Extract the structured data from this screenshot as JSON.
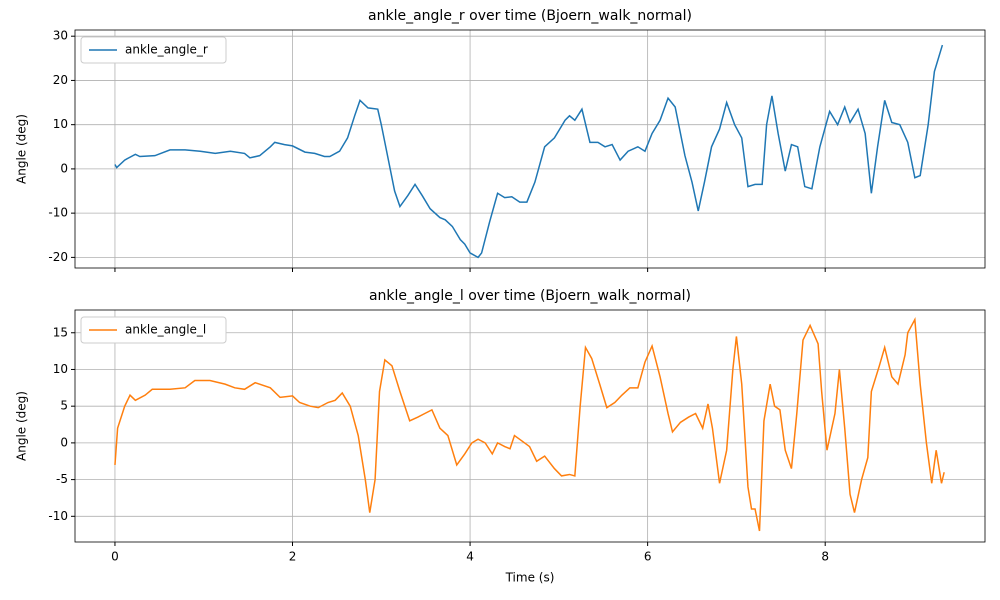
{
  "chart_data": [
    {
      "type": "line",
      "title": "ankle_angle_r over time (Bjoern_walk_normal)",
      "ylabel": "Angle (deg)",
      "x": [
        0,
        0.02,
        0.11,
        0.23,
        0.28,
        0.45,
        0.62,
        0.79,
        0.96,
        1.13,
        1.3,
        1.46,
        1.52,
        1.63,
        1.75,
        1.8,
        1.91,
        2.0,
        2.14,
        2.25,
        2.36,
        2.42,
        2.53,
        2.62,
        2.7,
        2.76,
        2.85,
        2.96,
        3.0,
        3.1,
        3.15,
        3.21,
        3.3,
        3.38,
        3.46,
        3.55,
        3.66,
        3.72,
        3.8,
        3.89,
        3.94,
        4.0,
        4.09,
        4.13,
        4.22,
        4.31,
        4.39,
        4.47,
        4.56,
        4.64,
        4.73,
        4.84,
        4.95,
        5.07,
        5.12,
        5.18,
        5.26,
        5.35,
        5.44,
        5.52,
        5.6,
        5.69,
        5.78,
        5.89,
        5.97,
        6.05,
        6.14,
        6.23,
        6.31,
        6.42,
        6.5,
        6.57,
        6.64,
        6.72,
        6.81,
        6.89,
        6.98,
        7.06,
        7.13,
        7.21,
        7.29,
        7.34,
        7.4,
        7.47,
        7.55,
        7.62,
        7.69,
        7.77,
        7.85,
        7.94,
        8.05,
        8.14,
        8.22,
        8.28,
        8.37,
        8.45,
        8.52,
        8.59,
        8.67,
        8.75,
        8.84,
        8.93,
        9.01,
        9.07,
        9.16,
        9.23,
        9.32
      ],
      "series": [
        {
          "name": "ankle_angle_r",
          "color": "#1f77b4",
          "values": [
            1,
            0.3,
            2,
            3.3,
            2.8,
            3,
            4.3,
            4.3,
            4,
            3.5,
            4,
            3.5,
            2.5,
            3,
            5,
            6,
            5.5,
            5.2,
            3.8,
            3.5,
            2.8,
            2.8,
            4,
            7,
            12,
            15.5,
            13.8,
            13.5,
            10,
            0,
            -5,
            -8.5,
            -6,
            -3.5,
            -6,
            -9,
            -11,
            -11.5,
            -13,
            -16,
            -17,
            -19,
            -20,
            -19,
            -12,
            -5.5,
            -6.5,
            -6.3,
            -7.5,
            -7.5,
            -3,
            5,
            7,
            11,
            12,
            11,
            13.5,
            6,
            6,
            5,
            5.5,
            2,
            4,
            5,
            4,
            8,
            11,
            16,
            14,
            3,
            -3,
            -9.5,
            -3,
            5,
            9,
            15,
            10,
            7,
            -4,
            -3.5,
            -3.5,
            10,
            16.5,
            8,
            -0.5,
            5.5,
            5,
            -4,
            -4.5,
            5,
            13,
            10,
            14,
            10.5,
            13.5,
            8,
            -5.5,
            5,
            15.5,
            10.5,
            10,
            6,
            -2,
            -1.5,
            10,
            22,
            28
          ]
        }
      ],
      "xlim": [
        -0.45,
        9.8
      ],
      "xticks": [
        0,
        2,
        4,
        6,
        8
      ],
      "ylim": [
        -22.4,
        31.4
      ],
      "yticks": [
        -20,
        -10,
        0,
        10,
        20,
        30
      ],
      "grid": true,
      "legend": "upper left"
    },
    {
      "type": "line",
      "title": "ankle_angle_l over time (Bjoern_walk_normal)",
      "ylabel": "Angle (deg)",
      "xlabel": "Time (s)",
      "x": [
        0,
        0.03,
        0.11,
        0.17,
        0.23,
        0.34,
        0.42,
        0.62,
        0.79,
        0.9,
        1.07,
        1.24,
        1.35,
        1.46,
        1.58,
        1.75,
        1.86,
        2.0,
        2.08,
        2.2,
        2.29,
        2.4,
        2.48,
        2.56,
        2.65,
        2.74,
        2.82,
        2.87,
        2.93,
        2.98,
        3.04,
        3.12,
        3.21,
        3.32,
        3.41,
        3.49,
        3.57,
        3.66,
        3.75,
        3.85,
        3.94,
        4.02,
        4.09,
        4.17,
        4.25,
        4.31,
        4.39,
        4.45,
        4.5,
        4.58,
        4.67,
        4.75,
        4.84,
        4.95,
        5.03,
        5.12,
        5.18,
        5.24,
        5.3,
        5.37,
        5.46,
        5.54,
        5.63,
        5.71,
        5.8,
        5.89,
        5.97,
        6.05,
        6.14,
        6.23,
        6.28,
        6.37,
        6.46,
        6.54,
        6.62,
        6.68,
        6.73,
        6.81,
        6.89,
        6.96,
        7.0,
        7.06,
        7.13,
        7.17,
        7.21,
        7.26,
        7.31,
        7.38,
        7.43,
        7.49,
        7.55,
        7.62,
        7.68,
        7.75,
        7.83,
        7.92,
        7.96,
        8.02,
        8.11,
        8.16,
        8.22,
        8.28,
        8.33,
        8.41,
        8.48,
        8.52,
        8.61,
        8.67,
        8.75,
        8.82,
        8.9,
        8.93,
        9.01,
        9.07,
        9.14,
        9.2,
        9.25,
        9.31,
        9.34
      ],
      "series": [
        {
          "name": "ankle_angle_l",
          "color": "#ff7f0e",
          "values": [
            -3,
            2,
            5,
            6.5,
            5.8,
            6.5,
            7.3,
            7.3,
            7.5,
            8.5,
            8.5,
            8,
            7.5,
            7.3,
            8.2,
            7.5,
            6.2,
            6.4,
            5.5,
            5,
            4.8,
            5.5,
            5.8,
            6.8,
            5,
            1,
            -5,
            -9.5,
            -5,
            7,
            11.3,
            10.5,
            7,
            3,
            3.5,
            4,
            4.5,
            2,
            1,
            -3,
            -1.5,
            0,
            0.5,
            0,
            -1.5,
            0,
            -0.5,
            -0.8,
            1,
            0.3,
            -0.5,
            -2.5,
            -1.8,
            -3.5,
            -4.5,
            -4.3,
            -4.5,
            5,
            13,
            11.5,
            8,
            4.8,
            5.5,
            6.5,
            7.5,
            7.5,
            11,
            13.2,
            9,
            4,
            1.5,
            2.8,
            3.5,
            4,
            2,
            5.3,
            2,
            -5.5,
            -1,
            10,
            14.5,
            8,
            -6,
            -9,
            -9,
            -12,
            3,
            8,
            5,
            4.5,
            -1,
            -3.5,
            4,
            14,
            16,
            13.5,
            7,
            -1,
            4,
            10,
            2,
            -7,
            -9.5,
            -5,
            -2,
            7,
            10.5,
            13,
            9,
            8,
            12,
            15,
            16.8,
            8,
            0,
            -5.5,
            -1,
            -5.5,
            -4
          ]
        }
      ],
      "xlim": [
        -0.45,
        9.8
      ],
      "xticks": [
        0,
        2,
        4,
        6,
        8
      ],
      "ylim": [
        -13.5,
        18.1
      ],
      "yticks": [
        -10,
        -5,
        0,
        5,
        10,
        15
      ],
      "grid": true,
      "legend": "upper left"
    }
  ]
}
